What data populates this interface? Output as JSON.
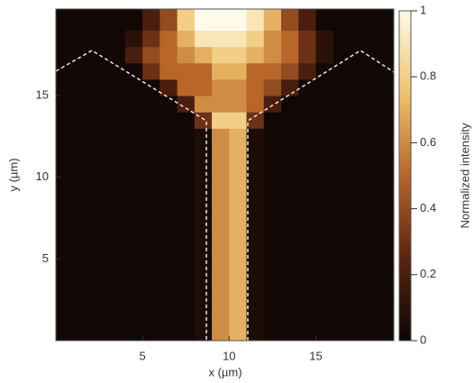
{
  "chart_data": {
    "type": "heatmap",
    "xlabel": "x (µm)",
    "ylabel": "y (µm)",
    "colorbar_label": "Normalized intensity",
    "x": [
      0.5,
      1.5,
      2.5,
      3.5,
      4.5,
      5.5,
      6.5,
      7.5,
      8.5,
      9.5,
      10.5,
      11.5,
      12.5,
      13.5,
      14.5,
      15.5,
      16.5,
      17.5,
      18.5
    ],
    "y": [
      0.5,
      1.5,
      2.5,
      3.5,
      4.5,
      5.5,
      6.5,
      7.5,
      8.5,
      9.5,
      10.5,
      11.5,
      12.5,
      13.5,
      14.5,
      15.5,
      16.5,
      17.5,
      18.5,
      19.5
    ],
    "z": [
      [
        0.02,
        0.02,
        0.02,
        0.02,
        0.02,
        0.02,
        0.02,
        0.02,
        0.05,
        0.6,
        0.7,
        0.05,
        0.02,
        0.02,
        0.02,
        0.02,
        0.02,
        0.02,
        0.02
      ],
      [
        0.02,
        0.02,
        0.02,
        0.02,
        0.02,
        0.02,
        0.02,
        0.02,
        0.05,
        0.6,
        0.7,
        0.05,
        0.02,
        0.02,
        0.02,
        0.02,
        0.02,
        0.02,
        0.02
      ],
      [
        0.02,
        0.02,
        0.02,
        0.02,
        0.02,
        0.02,
        0.02,
        0.02,
        0.05,
        0.6,
        0.7,
        0.05,
        0.02,
        0.02,
        0.02,
        0.02,
        0.02,
        0.02,
        0.02
      ],
      [
        0.02,
        0.02,
        0.02,
        0.02,
        0.02,
        0.02,
        0.02,
        0.02,
        0.05,
        0.6,
        0.7,
        0.05,
        0.02,
        0.02,
        0.02,
        0.02,
        0.02,
        0.02,
        0.02
      ],
      [
        0.02,
        0.02,
        0.02,
        0.02,
        0.02,
        0.02,
        0.02,
        0.02,
        0.05,
        0.6,
        0.7,
        0.05,
        0.02,
        0.02,
        0.02,
        0.02,
        0.02,
        0.02,
        0.02
      ],
      [
        0.02,
        0.02,
        0.02,
        0.02,
        0.02,
        0.02,
        0.02,
        0.02,
        0.05,
        0.6,
        0.7,
        0.05,
        0.02,
        0.02,
        0.02,
        0.02,
        0.02,
        0.02,
        0.02
      ],
      [
        0.02,
        0.02,
        0.02,
        0.02,
        0.02,
        0.02,
        0.02,
        0.02,
        0.05,
        0.6,
        0.7,
        0.05,
        0.02,
        0.02,
        0.02,
        0.02,
        0.02,
        0.02,
        0.02
      ],
      [
        0.02,
        0.02,
        0.02,
        0.02,
        0.02,
        0.02,
        0.02,
        0.02,
        0.05,
        0.6,
        0.7,
        0.05,
        0.02,
        0.02,
        0.02,
        0.02,
        0.02,
        0.02,
        0.02
      ],
      [
        0.02,
        0.02,
        0.02,
        0.02,
        0.02,
        0.02,
        0.02,
        0.02,
        0.05,
        0.6,
        0.7,
        0.05,
        0.02,
        0.02,
        0.02,
        0.02,
        0.02,
        0.02,
        0.02
      ],
      [
        0.02,
        0.02,
        0.02,
        0.02,
        0.02,
        0.02,
        0.02,
        0.02,
        0.05,
        0.6,
        0.7,
        0.05,
        0.02,
        0.02,
        0.02,
        0.02,
        0.02,
        0.02,
        0.02
      ],
      [
        0.02,
        0.02,
        0.02,
        0.02,
        0.02,
        0.02,
        0.02,
        0.02,
        0.05,
        0.6,
        0.7,
        0.05,
        0.02,
        0.02,
        0.02,
        0.02,
        0.02,
        0.02,
        0.02
      ],
      [
        0.02,
        0.02,
        0.02,
        0.02,
        0.02,
        0.02,
        0.02,
        0.02,
        0.05,
        0.6,
        0.7,
        0.05,
        0.02,
        0.02,
        0.02,
        0.02,
        0.02,
        0.02,
        0.02
      ],
      [
        0.02,
        0.02,
        0.02,
        0.02,
        0.02,
        0.02,
        0.02,
        0.02,
        0.05,
        0.6,
        0.7,
        0.05,
        0.02,
        0.02,
        0.02,
        0.02,
        0.02,
        0.02,
        0.02
      ],
      [
        0.02,
        0.02,
        0.02,
        0.02,
        0.02,
        0.02,
        0.02,
        0.02,
        0.3,
        0.8,
        0.8,
        0.3,
        0.02,
        0.02,
        0.02,
        0.02,
        0.02,
        0.02,
        0.02
      ],
      [
        0.02,
        0.02,
        0.02,
        0.02,
        0.02,
        0.02,
        0.02,
        0.2,
        0.6,
        0.6,
        0.6,
        0.5,
        0.2,
        0.02,
        0.02,
        0.02,
        0.02,
        0.02,
        0.02
      ],
      [
        0.02,
        0.02,
        0.02,
        0.02,
        0.02,
        0.02,
        0.2,
        0.5,
        0.5,
        0.6,
        0.6,
        0.5,
        0.4,
        0.2,
        0.02,
        0.02,
        0.02,
        0.02,
        0.02
      ],
      [
        0.02,
        0.02,
        0.02,
        0.02,
        0.02,
        0.3,
        0.5,
        0.5,
        0.5,
        0.7,
        0.7,
        0.5,
        0.5,
        0.4,
        0.2,
        0.02,
        0.02,
        0.02,
        0.02
      ],
      [
        0.02,
        0.02,
        0.02,
        0.02,
        0.2,
        0.4,
        0.5,
        0.6,
        0.7,
        0.8,
        0.8,
        0.7,
        0.6,
        0.5,
        0.3,
        0.1,
        0.02,
        0.02,
        0.02
      ],
      [
        0.02,
        0.02,
        0.02,
        0.02,
        0.1,
        0.3,
        0.5,
        0.7,
        0.9,
        0.9,
        0.9,
        0.8,
        0.6,
        0.5,
        0.3,
        0.1,
        0.02,
        0.02,
        0.02
      ],
      [
        0.02,
        0.02,
        0.02,
        0.02,
        0.02,
        0.2,
        0.4,
        0.8,
        1,
        1,
        1,
        0.9,
        0.7,
        0.4,
        0.2,
        0.02,
        0.02,
        0.02,
        0.02
      ]
    ],
    "xlim": [
      0,
      19.5
    ],
    "ylim": [
      0,
      20.3
    ],
    "xticks": [
      5,
      10,
      15
    ],
    "yticks": [
      5,
      10,
      15
    ],
    "clim": [
      0,
      1
    ],
    "cticks": [
      0,
      0.2,
      0.4,
      0.6,
      0.8,
      1
    ],
    "colormap": [
      "#0b0604",
      "#5a2410",
      "#b8662a",
      "#efc46e",
      "#fffbe8"
    ]
  }
}
